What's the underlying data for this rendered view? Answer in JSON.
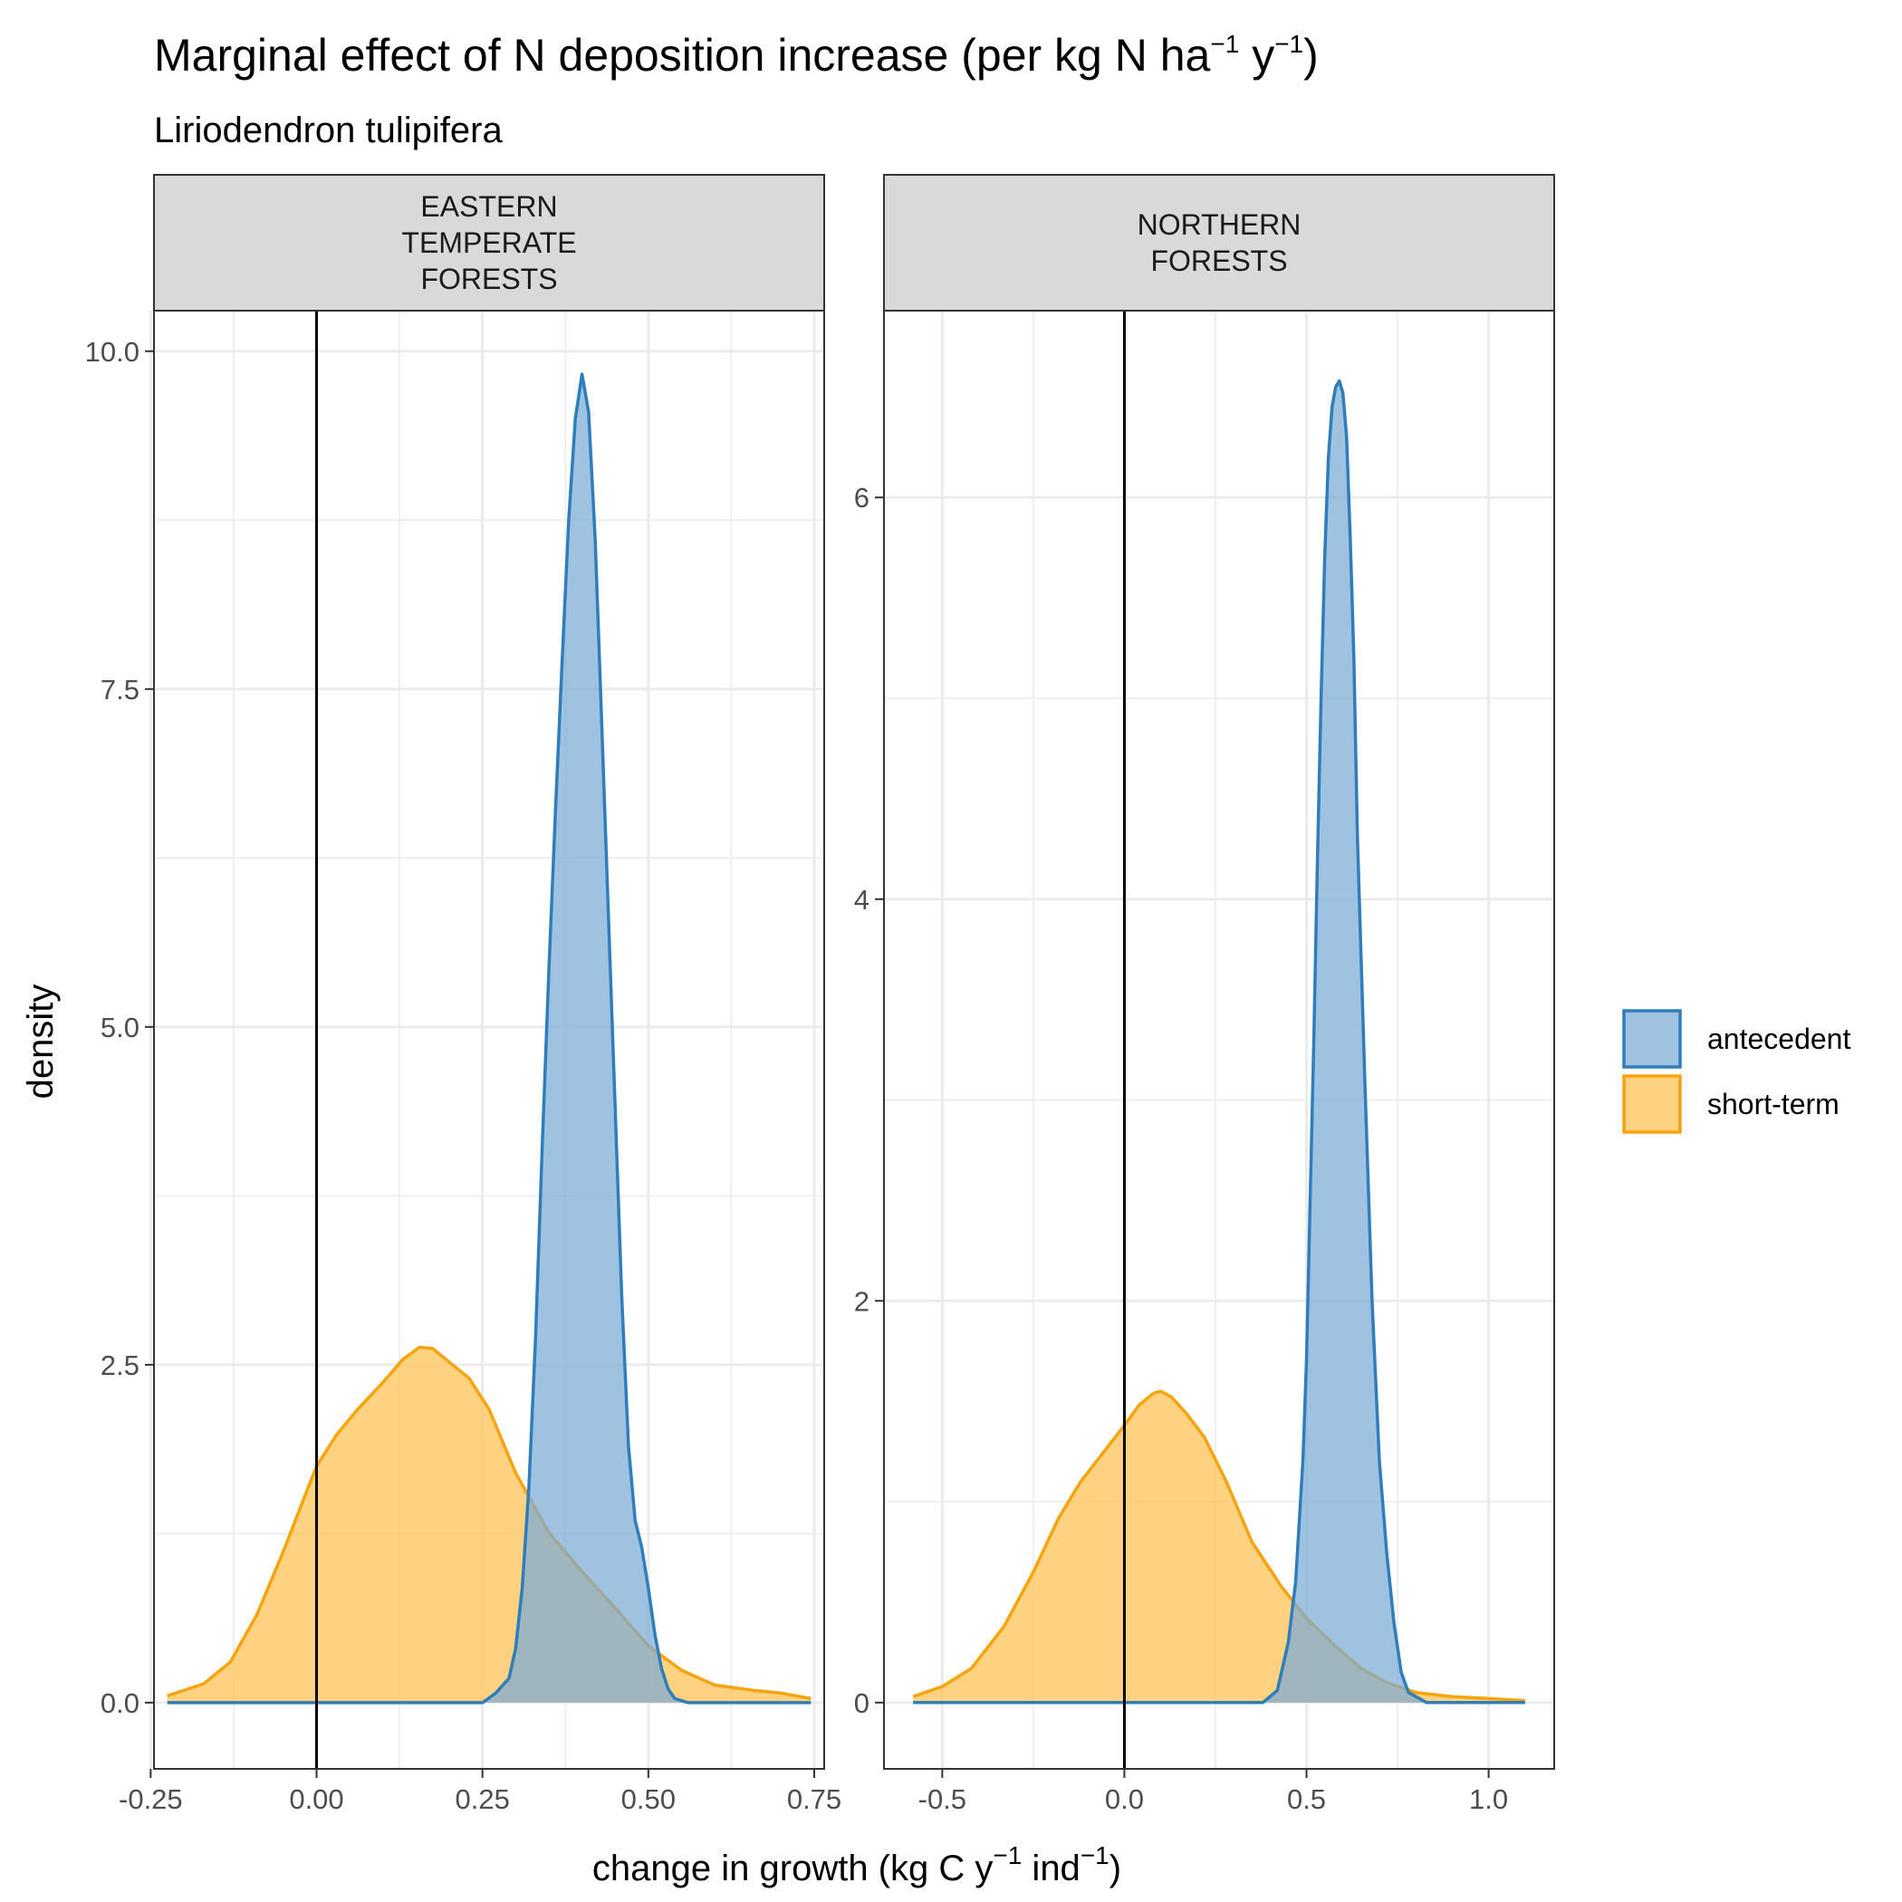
{
  "chart_data": {
    "type": "area",
    "title": "Marginal effect of N deposition increase (per kg N ha⁻¹ y⁻¹)",
    "title_parts": {
      "pre": "Marginal effect of N deposition increase (per kg N ha",
      "sup1": "−1",
      "mid": " y",
      "sup2": "−1",
      "post": ")"
    },
    "subtitle": "Liriodendron tulipifera",
    "xlabel": "change in growth (kg C y⁻¹ ind⁻¹)",
    "xlabel_parts": {
      "pre": "change in growth (kg C y",
      "sup1": "−1",
      "mid": " ind",
      "sup2": "−1",
      "post": ")"
    },
    "ylabel": "density",
    "legend": {
      "position": "right",
      "entries": [
        {
          "name": "antecedent",
          "fill": "#7BAAD6",
          "line": "#2F7EBB"
        },
        {
          "name": "short-term",
          "fill": "#FDC04F",
          "line": "#F5A40D"
        }
      ]
    },
    "colors": {
      "antecedent_fill": "#7BAAD6",
      "antecedent_line": "#2F7EBB",
      "shortterm_fill": "#FDC04F",
      "shortterm_line": "#F5A40D",
      "strip_bg": "#D9D9D9",
      "grid": "#EBEBEB"
    },
    "grid": true,
    "vline_x": 0,
    "panels": [
      {
        "strip": [
          "EASTERN",
          "TEMPERATE",
          "FORESTS"
        ],
        "xlim": [
          -0.245,
          0.765
        ],
        "ylim": [
          -0.49,
          10.3
        ],
        "x_ticks": [
          -0.25,
          0.0,
          0.25,
          0.5,
          0.75
        ],
        "x_tick_labels": [
          "-0.25",
          "0.00",
          "0.25",
          "0.50",
          "0.75"
        ],
        "x_minor": [
          -0.125,
          0.125,
          0.375,
          0.625
        ],
        "y_ticks": [
          0,
          2.5,
          5.0,
          7.5,
          10.0
        ],
        "y_tick_labels": [
          "0.0",
          "2.5",
          "5.0",
          "7.5",
          "10.0"
        ],
        "y_minor": [
          1.25,
          3.75,
          6.25,
          8.75
        ],
        "series": [
          {
            "name": "short-term",
            "x": [
              -0.225,
              -0.17,
              -0.13,
              -0.09,
              -0.05,
              -0.02,
              0.0,
              0.03,
              0.06,
              0.1,
              0.13,
              0.155,
              0.175,
              0.2,
              0.23,
              0.26,
              0.3,
              0.35,
              0.4,
              0.45,
              0.5,
              0.55,
              0.6,
              0.66,
              0.7,
              0.745
            ],
            "y": [
              0.05,
              0.14,
              0.3,
              0.65,
              1.12,
              1.5,
              1.75,
              1.98,
              2.16,
              2.37,
              2.54,
              2.63,
              2.62,
              2.52,
              2.4,
              2.17,
              1.7,
              1.26,
              0.97,
              0.7,
              0.42,
              0.24,
              0.13,
              0.09,
              0.07,
              0.03
            ]
          },
          {
            "name": "antecedent",
            "x": [
              -0.225,
              0.25,
              0.27,
              0.29,
              0.3,
              0.31,
              0.32,
              0.33,
              0.34,
              0.35,
              0.36,
              0.37,
              0.38,
              0.39,
              0.4,
              0.41,
              0.42,
              0.43,
              0.44,
              0.45,
              0.46,
              0.47,
              0.48,
              0.49,
              0.5,
              0.51,
              0.52,
              0.53,
              0.54,
              0.56,
              0.745
            ],
            "y": [
              0.0,
              0.0,
              0.07,
              0.18,
              0.4,
              0.85,
              1.6,
              2.7,
              4.1,
              5.4,
              6.6,
              7.7,
              8.75,
              9.5,
              9.83,
              9.55,
              8.6,
              7.2,
              5.8,
              4.4,
              3.0,
              1.9,
              1.35,
              1.15,
              0.85,
              0.5,
              0.25,
              0.1,
              0.03,
              0.0,
              0.0
            ]
          }
        ]
      },
      {
        "strip": [
          "NORTHERN",
          "FORESTS"
        ],
        "xlim": [
          -0.66,
          1.18
        ],
        "ylim": [
          -0.33,
          6.93
        ],
        "x_ticks": [
          -0.5,
          0.0,
          0.5,
          1.0
        ],
        "x_tick_labels": [
          "-0.5",
          "0.0",
          "0.5",
          "1.0"
        ],
        "x_minor": [
          -0.25,
          0.25,
          0.75
        ],
        "y_ticks": [
          0,
          2,
          4,
          6
        ],
        "y_tick_labels": [
          "0",
          "2",
          "4",
          "6"
        ],
        "y_minor": [
          1,
          3,
          5
        ],
        "series": [
          {
            "name": "short-term",
            "x": [
              -0.58,
              -0.5,
              -0.42,
              -0.33,
              -0.25,
              -0.18,
              -0.12,
              -0.06,
              0.0,
              0.04,
              0.08,
              0.1,
              0.13,
              0.17,
              0.22,
              0.28,
              0.35,
              0.43,
              0.5,
              0.58,
              0.65,
              0.72,
              0.8,
              0.9,
              1.0,
              1.1
            ],
            "y": [
              0.03,
              0.08,
              0.17,
              0.38,
              0.65,
              0.92,
              1.1,
              1.24,
              1.38,
              1.48,
              1.54,
              1.55,
              1.52,
              1.44,
              1.32,
              1.1,
              0.8,
              0.58,
              0.42,
              0.28,
              0.17,
              0.1,
              0.05,
              0.03,
              0.02,
              0.01
            ]
          },
          {
            "name": "antecedent",
            "x": [
              -0.58,
              0.38,
              0.42,
              0.45,
              0.47,
              0.49,
              0.5,
              0.51,
              0.52,
              0.53,
              0.54,
              0.55,
              0.56,
              0.57,
              0.58,
              0.59,
              0.6,
              0.61,
              0.62,
              0.63,
              0.64,
              0.66,
              0.68,
              0.7,
              0.72,
              0.74,
              0.76,
              0.78,
              0.83,
              1.1
            ],
            "y": [
              0.0,
              0.0,
              0.06,
              0.3,
              0.6,
              1.2,
              1.7,
              2.5,
              3.3,
              4.2,
              5.0,
              5.7,
              6.2,
              6.45,
              6.55,
              6.58,
              6.52,
              6.3,
              5.8,
              5.2,
              4.3,
              3.1,
              2.0,
              1.2,
              0.75,
              0.4,
              0.15,
              0.05,
              0.0,
              0.0
            ]
          }
        ]
      }
    ]
  }
}
